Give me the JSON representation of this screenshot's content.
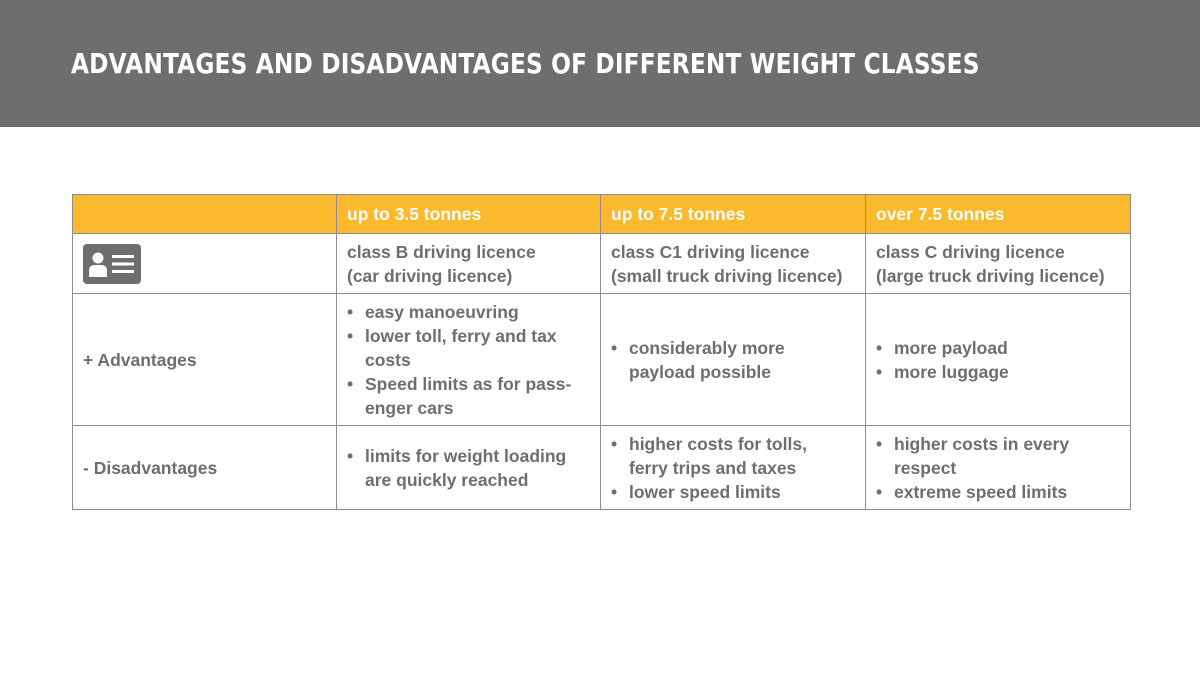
{
  "header": {
    "title": "ADVANTAGES AND DISADVANTAGES OF DIFFERENT WEIGHT CLASSES"
  },
  "colors": {
    "header_background": "#6e6e6e",
    "table_header_background": "#fbb92d",
    "text": "#6e6e6e",
    "border": "#8e8e8e"
  },
  "table": {
    "header_row": [
      "",
      "up to 3.5 tonnes",
      "up to 7.5 tonnes",
      "over 7.5 tonnes"
    ],
    "licence_row": {
      "icon": "id-card-icon",
      "cells": [
        [
          "class B driving licence",
          "(car driving licence)"
        ],
        [
          "class C1 driving licence",
          "(small truck driving licence)"
        ],
        [
          "class C driving licence",
          "(large truck driving licence)"
        ]
      ]
    },
    "advantages_row": {
      "label": "+ Advantages",
      "cells": [
        [
          [
            "easy manoeuvring"
          ],
          [
            "lower toll, ferry and tax",
            "costs"
          ],
          [
            "Speed limits as for pass-",
            "enger cars"
          ]
        ],
        [
          [
            "considerably more",
            "payload possible"
          ]
        ],
        [
          [
            "more payload"
          ],
          [
            "more luggage"
          ]
        ]
      ]
    },
    "disadvantages_row": {
      "label": "- Disadvantages",
      "cells": [
        [
          [
            "limits for weight loading",
            "are quickly reached"
          ]
        ],
        [
          [
            "higher costs for tolls,",
            "ferry trips and taxes"
          ],
          [
            "lower speed limits"
          ]
        ],
        [
          [
            "higher costs in every",
            "respect"
          ],
          [
            "extreme speed limits"
          ]
        ]
      ]
    }
  }
}
